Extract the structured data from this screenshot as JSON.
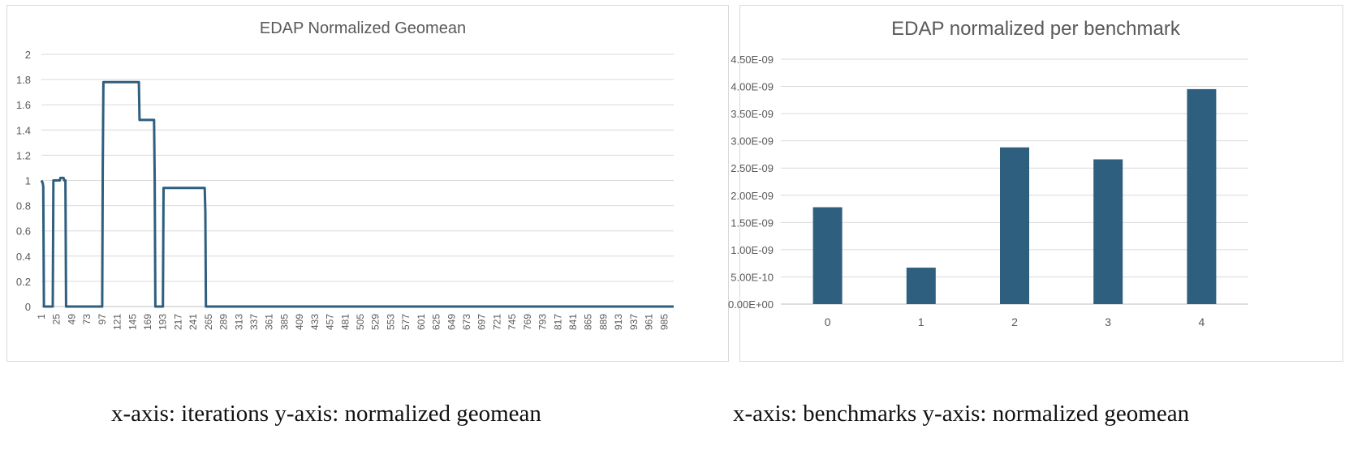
{
  "chart_data": [
    {
      "type": "line",
      "title": "EDAP Normalized Geomean",
      "xlabel": "",
      "ylabel": "",
      "color": "#2e5f7f",
      "ylim": [
        0,
        2
      ],
      "yticks": [
        "2",
        "1.8",
        "1.6",
        "1.4",
        "1.2",
        "1",
        "0.8",
        "0.6",
        "0.4",
        "0.2",
        "0"
      ],
      "ytick_values": [
        2,
        1.8,
        1.6,
        1.4,
        1.2,
        1,
        0.8,
        0.6,
        0.4,
        0.2,
        0
      ],
      "xlim": [
        1,
        1000
      ],
      "xticks": [
        "1",
        "25",
        "49",
        "73",
        "97",
        "121",
        "145",
        "169",
        "193",
        "217",
        "241",
        "265",
        "289",
        "313",
        "337",
        "361",
        "385",
        "409",
        "433",
        "457",
        "481",
        "505",
        "529",
        "553",
        "577",
        "601",
        "625",
        "649",
        "673",
        "697",
        "721",
        "745",
        "769",
        "793",
        "817",
        "841",
        "865",
        "889",
        "913",
        "937",
        "961",
        "985"
      ],
      "grid": true,
      "series": [
        {
          "x": [
            1,
            3,
            4,
            5,
            19,
            20,
            21,
            30,
            31,
            36,
            37,
            39,
            40,
            97,
            98,
            99,
            155,
            156,
            157,
            179,
            180,
            181,
            193,
            194,
            195,
            259,
            260,
            261,
            262,
            1000
          ],
          "y": [
            1.0,
            0.98,
            0.95,
            0,
            0,
            1.0,
            1.0,
            1.0,
            1.02,
            1.02,
            1.0,
            1.0,
            0,
            0,
            1.1,
            1.78,
            1.78,
            1.48,
            1.48,
            1.48,
            1.0,
            0,
            0,
            0.94,
            0.94,
            0.94,
            0.75,
            0,
            0,
            0
          ]
        }
      ]
    },
    {
      "type": "bar",
      "title": "EDAP normalized per benchmark",
      "xlabel": "",
      "ylabel": "",
      "color": "#2e5f7f",
      "categories": [
        "0",
        "1",
        "2",
        "3",
        "4"
      ],
      "values": [
        1.78e-09,
        6.7e-10,
        2.88e-09,
        2.66e-09,
        3.95e-09
      ],
      "ylim": [
        0,
        4.5e-09
      ],
      "yticks": [
        "4.50E-09",
        "4.00E-09",
        "3.50E-09",
        "3.00E-09",
        "2.50E-09",
        "2.00E-09",
        "1.50E-09",
        "1.00E-09",
        "5.00E-10",
        "0.00E+00"
      ],
      "ytick_values": [
        4.5e-09,
        4e-09,
        3.5e-09,
        3e-09,
        2.5e-09,
        2e-09,
        1.5e-09,
        1e-09,
        5e-10,
        0
      ],
      "grid": true
    }
  ],
  "captions": {
    "left": "x-axis: iterations  y-axis: normalized geomean",
    "right": "x-axis: benchmarks  y-axis: normalized geomean"
  }
}
